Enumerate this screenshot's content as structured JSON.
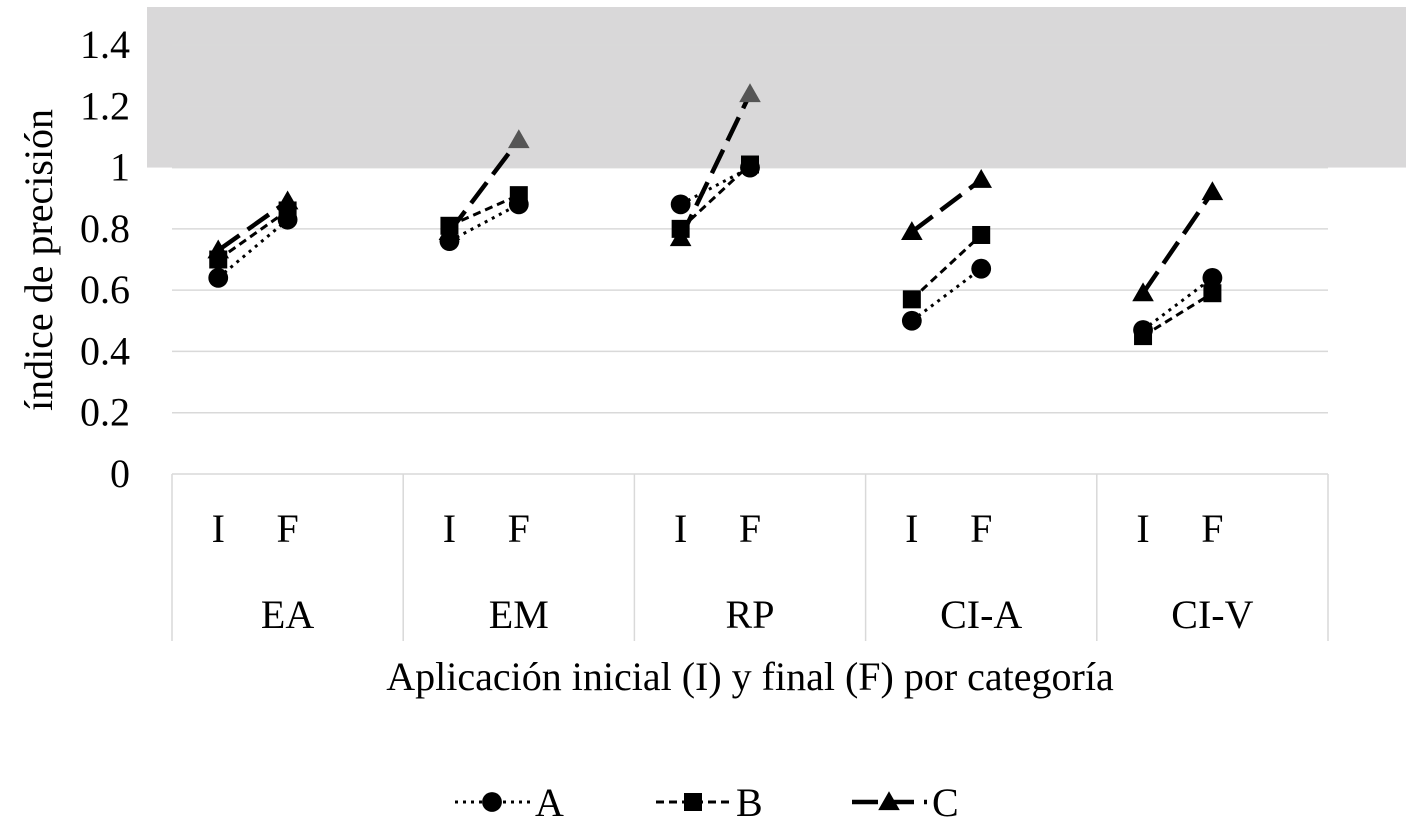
{
  "chart_data": {
    "type": "line",
    "xlabel": "Aplicación inicial (I) y final (F) por categoría",
    "ylabel": "índice de precisión",
    "ylim": [
      0,
      1.4
    ],
    "yticks": [
      "0",
      "0.2",
      "0.4",
      "0.6",
      "0.8",
      "1",
      "1.2",
      "1.4"
    ],
    "shaded_region": {
      "y_from": 1.0,
      "y_to": 1.4,
      "color": "#d9d8d9"
    },
    "groups": [
      "EA",
      "EM",
      "RP",
      "CI-A",
      "CI-V"
    ],
    "sublabels": [
      "I",
      "F"
    ],
    "legend_position": "bottom",
    "series": [
      {
        "name": "A",
        "marker": "circle",
        "dash": "dotted",
        "values": [
          [
            0.64,
            0.83
          ],
          [
            0.76,
            0.88
          ],
          [
            0.88,
            1.0
          ],
          [
            0.5,
            0.67
          ],
          [
            0.47,
            0.64
          ]
        ]
      },
      {
        "name": "B",
        "marker": "square",
        "dash": "short-dash",
        "values": [
          [
            0.7,
            0.86
          ],
          [
            0.81,
            0.91
          ],
          [
            0.8,
            1.01
          ],
          [
            0.57,
            0.78
          ],
          [
            0.45,
            0.59
          ]
        ]
      },
      {
        "name": "C",
        "marker": "triangle",
        "dash": "long-dash",
        "values": [
          [
            0.73,
            0.89
          ],
          [
            0.79,
            1.09
          ],
          [
            0.77,
            1.24
          ],
          [
            0.79,
            0.96
          ],
          [
            0.59,
            0.92
          ]
        ]
      }
    ],
    "grid": true
  }
}
